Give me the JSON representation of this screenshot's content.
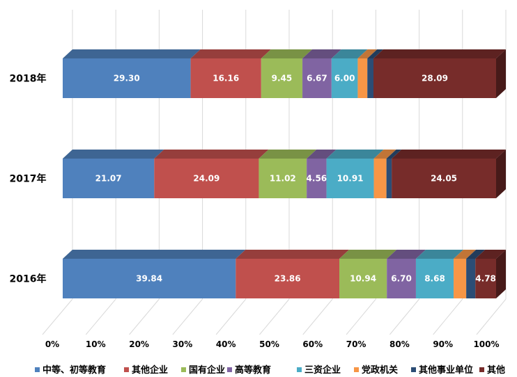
{
  "chart_data": {
    "type": "bar",
    "orientation": "horizontal",
    "stacked": "100%",
    "three_d": true,
    "categories": [
      "2018年",
      "2017年",
      "2016年"
    ],
    "series": [
      {
        "name": "中等、初等教育",
        "color": "#4F81BD",
        "values": [
          29.3,
          21.07,
          39.84
        ]
      },
      {
        "name": "其他企业",
        "color": "#C0504D",
        "values": [
          16.16,
          24.09,
          23.86
        ]
      },
      {
        "name": "国有企业",
        "color": "#9BBB59",
        "values": [
          9.45,
          11.02,
          10.94
        ]
      },
      {
        "name": "高等教育",
        "color": "#8064A2",
        "values": [
          6.67,
          4.56,
          6.7
        ]
      },
      {
        "name": "三资企业",
        "color": "#4BACC6",
        "values": [
          6.0,
          10.91,
          8.68
        ]
      },
      {
        "name": "党政机关",
        "color": "#F79646",
        "values": [
          2.2,
          2.9,
          2.9
        ]
      },
      {
        "name": "其他事业单位",
        "color": "#2C4D75",
        "values": [
          1.4,
          1.2,
          2.1
        ]
      },
      {
        "name": "其他",
        "color": "#772C2A",
        "values": [
          28.09,
          24.05,
          4.78
        ]
      }
    ],
    "data_labels": [
      [
        "29.30",
        "16.16",
        "9.45",
        "6.67",
        "6.00",
        "",
        "",
        "28.09"
      ],
      [
        "21.07",
        "24.09",
        "11.02",
        "4.56",
        "10.91",
        "",
        "",
        "24.05"
      ],
      [
        "39.84",
        "23.86",
        "10.94",
        "6.70",
        "8.68",
        "",
        "",
        "4.78"
      ]
    ],
    "x_ticks": [
      "0%",
      "10%",
      "20%",
      "30%",
      "40%",
      "50%",
      "60%",
      "70%",
      "80%",
      "90%",
      "100%"
    ],
    "xlim": [
      0,
      100
    ],
    "grid": true,
    "legend_position": "bottom"
  }
}
